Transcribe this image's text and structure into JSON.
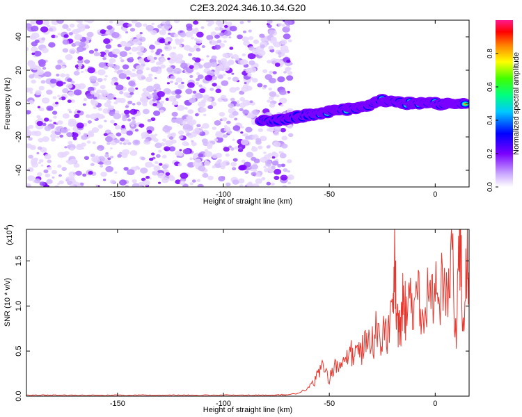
{
  "figure": {
    "title": "C2E3.2024.346.10.34.G20"
  },
  "chart_data": [
    {
      "type": "heatmap",
      "title": "C2E3.2024.346.10.34.G20",
      "xlabel": "Height of straight line (km)",
      "ylabel": "Frequency (Hz)",
      "xlim": [
        -193,
        16
      ],
      "ylim": [
        -50,
        50
      ],
      "x_ticks": [
        -150,
        -100,
        -50,
        0
      ],
      "x_tick_labels": [
        "-150",
        "-100",
        "-50",
        "0"
      ],
      "y_ticks": [
        -40,
        -20,
        0,
        20,
        40
      ],
      "y_tick_labels": [
        "-40",
        "-20",
        "0",
        "20",
        "40"
      ],
      "noise_region_x": [
        -193,
        -68
      ],
      "signal_track": {
        "x": [
          -82,
          -75,
          -70,
          -65,
          -60,
          -55,
          -50,
          -45,
          -40,
          -35,
          -30,
          -25,
          -20,
          -15,
          -10,
          -5,
          0,
          5,
          10,
          15
        ],
        "y": [
          -10,
          -10,
          -9,
          -8,
          -7,
          -6,
          -5,
          -4,
          -3,
          -2,
          0,
          2,
          1,
          0,
          0,
          0,
          0,
          0,
          -1,
          0
        ]
      },
      "colorbar": {
        "label": "Normalized spectral amplitude",
        "range": [
          0.0,
          1.0
        ],
        "ticks": [
          0.0,
          0.2,
          0.4,
          0.6,
          0.8
        ],
        "tick_labels": [
          "0.0",
          "0.2",
          "0.4",
          "0.6",
          "0.8"
        ],
        "colors": [
          "#ffffff",
          "#7a00ff",
          "#0000ff",
          "#00c8ff",
          "#00ff80",
          "#40ff00",
          "#ffff00",
          "#ff8000",
          "#ff0000",
          "#ff00c0"
        ]
      }
    },
    {
      "type": "line",
      "xlabel": "Height of straight line (km)",
      "ylabel": "SNR (10 * v/v)",
      "y_multiplier": "(x10",
      "y_multiplier_exp": "4",
      "y_multiplier_close": ")",
      "xlim": [
        -193,
        16
      ],
      "ylim": [
        0,
        1.85
      ],
      "x_ticks": [
        -150,
        -100,
        -50,
        0
      ],
      "x_tick_labels": [
        "-150",
        "-100",
        "-50",
        "0"
      ],
      "y_ticks": [
        0.0,
        0.5,
        1.0,
        1.5
      ],
      "y_tick_labels": [
        "0.0",
        "0.5",
        "1.0",
        "1.5"
      ],
      "series": [
        {
          "color": "#e8362d",
          "x": [
            -193,
            -180,
            -160,
            -140,
            -120,
            -100,
            -80,
            -70,
            -65,
            -60,
            -57,
            -55,
            -53,
            -50,
            -48,
            -46,
            -44,
            -42,
            -40,
            -38,
            -36,
            -34,
            -32,
            -30,
            -28,
            -26,
            -24,
            -22,
            -20,
            -19,
            -18,
            -17,
            -16,
            -15,
            -14,
            -12,
            -10,
            -8,
            -6,
            -4,
            -2,
            0,
            2,
            4,
            6,
            8,
            10,
            11,
            12,
            13,
            14,
            15,
            16
          ],
          "y": [
            0.01,
            0.01,
            0.01,
            0.01,
            0.01,
            0.01,
            0.01,
            0.015,
            0.03,
            0.08,
            0.15,
            0.28,
            0.3,
            0.2,
            0.35,
            0.3,
            0.45,
            0.4,
            0.5,
            0.45,
            0.55,
            0.5,
            0.6,
            0.55,
            0.7,
            0.6,
            0.75,
            0.7,
            0.9,
            1.6,
            0.8,
            0.7,
            0.85,
            1.3,
            0.9,
            1.2,
            0.95,
            1.1,
            1.0,
            1.05,
            1.1,
            1.2,
            1.0,
            1.4,
            1.1,
            1.6,
            0.5,
            1.5,
            1.85,
            0.6,
            1.2,
            1.45,
            1.0
          ]
        }
      ]
    }
  ]
}
